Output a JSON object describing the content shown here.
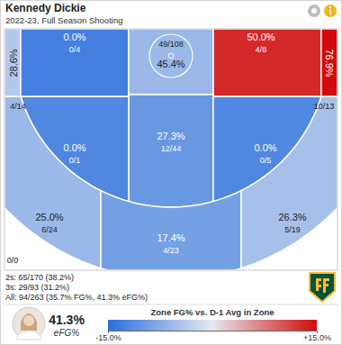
{
  "chart_data": {
    "type": "shot_chart",
    "title": "Kennedy Dickie",
    "subtitle": "2022-23, Full Season Shooting",
    "zones": [
      {
        "fg": "28.6%",
        "shots": "4/14",
        "diff": -4
      },
      {
        "fg": "0.0%",
        "shots": "0/4",
        "diff": -13
      },
      {
        "fg": "45.4%",
        "shots": "49/108",
        "diff": -6
      },
      {
        "fg": "50.0%",
        "shots": "4/8",
        "diff": 13
      },
      {
        "fg": "76.9%",
        "shots": "10/13",
        "diff": 15
      },
      {
        "fg": "27.3%",
        "shots": "12/44",
        "diff": -10
      },
      {
        "fg": "0.0%",
        "shots": "0/1",
        "diff": -12
      },
      {
        "fg": "0.0%",
        "shots": "0/5",
        "diff": -12
      },
      {
        "fg": "25.0%",
        "shots": "6/24",
        "diff": -6
      },
      {
        "fg": "17.4%",
        "shots": "4/23",
        "diff": -9
      },
      {
        "fg": "26.3%",
        "shots": "5/19",
        "diff": -5
      },
      {
        "shots": "0/0",
        "diff": null
      }
    ],
    "summary": [
      "2s: 65/170 (38.2%)",
      "3s: 29/93 (31.2%)",
      "All: 94/263 (35.7% FG%, 41.3% eFG%)"
    ],
    "efg": {
      "label": "41.3%",
      "caption": "eFG%"
    },
    "colorbar": {
      "title": "Zone FG% vs. D-1 Avg in Zone",
      "range": [
        -15,
        15
      ],
      "ticks": [
        {
          "value": -15,
          "label": "-15.0%"
        },
        {
          "value": 15,
          "label": "+15.0%"
        }
      ]
    }
  }
}
